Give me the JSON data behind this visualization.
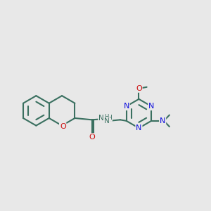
{
  "background_color": "#e8e8e8",
  "bond_color": "#3a7060",
  "nitrogen_color": "#1010dd",
  "oxygen_color": "#cc1010",
  "line_width": 1.5,
  "figsize": [
    3.0,
    3.0
  ],
  "dpi": 100,
  "xlim": [
    0.0,
    10.0
  ],
  "ylim": [
    2.5,
    8.5
  ]
}
